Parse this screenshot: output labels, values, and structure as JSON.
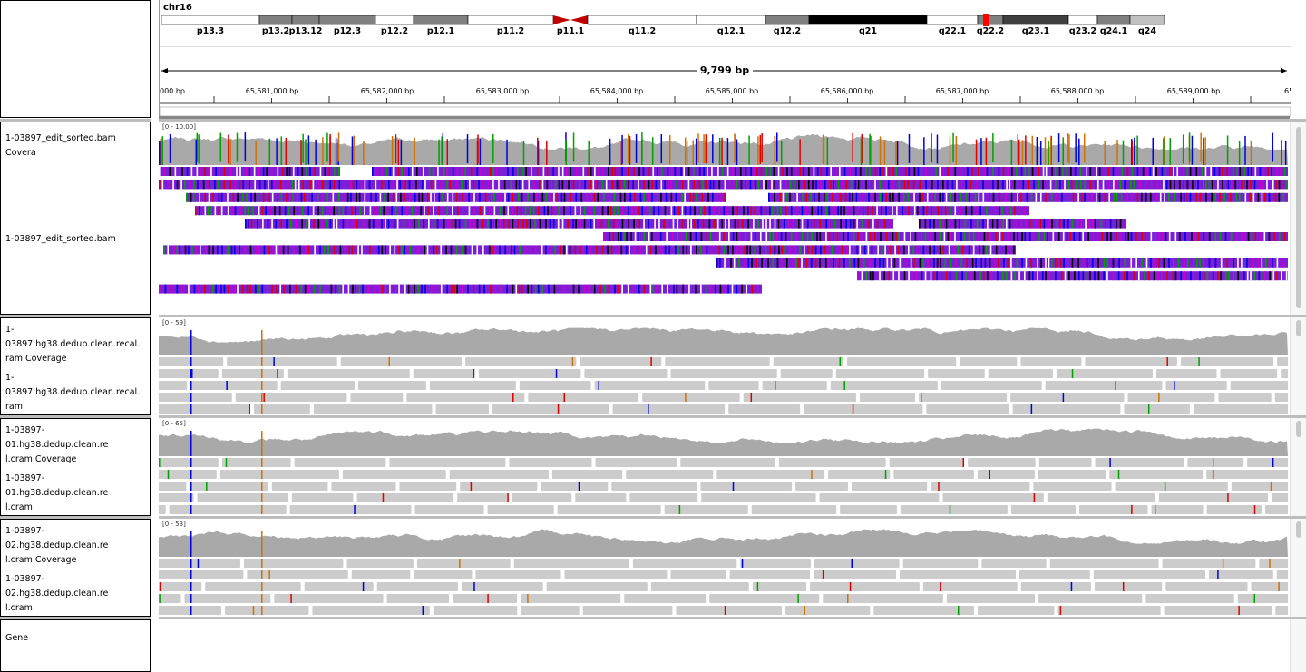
{
  "header": {
    "chromosome": "chr16",
    "bands": [
      {
        "name": "p13.3",
        "stain": "w"
      },
      {
        "name": "p13.2",
        "stain": "g"
      },
      {
        "name": "p13.12",
        "stain": "g"
      },
      {
        "name": "p12.3",
        "stain": "g"
      },
      {
        "name": "p12.2",
        "stain": "w"
      },
      {
        "name": "p12.1",
        "stain": "g"
      },
      {
        "name": "p11.2",
        "stain": "w"
      },
      {
        "name": "p11.1",
        "stain": "cen"
      },
      {
        "name": "q11.2",
        "stain": "w"
      },
      {
        "name": "q12.1",
        "stain": "w"
      },
      {
        "name": "q12.2",
        "stain": "g"
      },
      {
        "name": "q21",
        "stain": "b"
      },
      {
        "name": "q22.1",
        "stain": "w"
      },
      {
        "name": "q22.2",
        "stain": "g"
      },
      {
        "name": "q23.1",
        "stain": "d"
      },
      {
        "name": "q23.2",
        "stain": "w"
      },
      {
        "name": "q24.1",
        "stain": "g"
      },
      {
        "name": "q24",
        "stain": "l"
      }
    ],
    "span_label": "9,799 bp",
    "ruler_ticks": [
      "000 bp",
      "65,581,000 bp",
      "65,582,000 bp",
      "65,583,000 bp",
      "65,584,000 bp",
      "65,585,000 bp",
      "65,586,000 bp",
      "65,587,000 bp",
      "65,588,000 bp",
      "65,589,000 bp",
      "65"
    ]
  },
  "panels": [
    {
      "coverage_label": "1-03897_edit_sorted.bam Covera",
      "alignment_label": "1-03897_edit_sorted.bam",
      "range": "[0 - 10.00]"
    },
    {
      "coverage_label": "1-03897.hg38.dedup.clean.recal.\nram Coverage",
      "alignment_label": "1-03897.hg38.dedup.clean.recal.\nram",
      "range": "[0 - 59]"
    },
    {
      "coverage_label": "1-03897-01.hg38.dedup.clean.re\nl.cram Coverage",
      "alignment_label": "1-03897-01.hg38.dedup.clean.re\nl.cram",
      "range": "[0 - 65]"
    },
    {
      "coverage_label": "1-03897-02.hg38.dedup.clean.re\nl.cram Coverage",
      "alignment_label": "1-03897-02.hg38.dedup.clean.re\nl.cram",
      "range": "[0 - 53]"
    }
  ],
  "gene_track": {
    "label": "Gene"
  },
  "colors": {
    "coverage": "#a9a9a9",
    "read": "#cccccc",
    "mismatch_a": "#00a000",
    "mismatch_c": "#0000e0",
    "mismatch_g": "#d17105",
    "mismatch_t": "#e00000",
    "insertion": "#8a2be2",
    "cytoband_marker": "#ff0000"
  }
}
